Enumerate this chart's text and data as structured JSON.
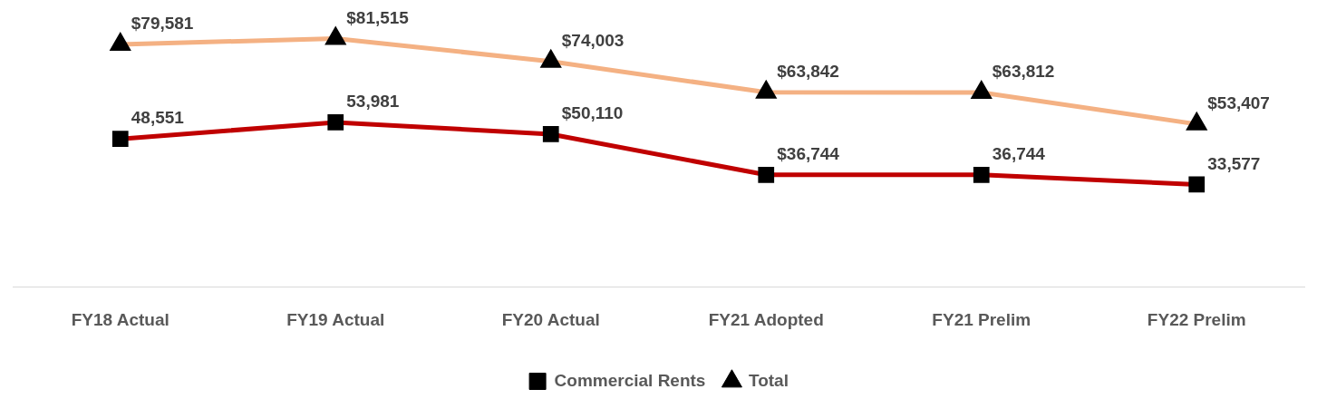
{
  "chart_data": {
    "type": "line",
    "categories": [
      "FY18 Actual",
      "FY19 Actual",
      "FY20 Actual",
      "FY21 Adopted",
      "FY21 Prelim",
      "FY22 Prelim"
    ],
    "tick_labels": "x",
    "legend": "bottom",
    "line_style": "solid",
    "series": [
      {
        "name": "Commercial Rents",
        "color": "#c00000",
        "marker": "square",
        "values": [
          48551,
          53981,
          50110,
          36744,
          36744,
          33577
        ],
        "value_labels": [
          "48,551",
          "53,981",
          "$50,110",
          "$36,744",
          "36,744",
          "33,577"
        ]
      },
      {
        "name": "Total",
        "color": "#f4b183",
        "marker": "triangle",
        "values": [
          79581,
          81515,
          74003,
          63842,
          63812,
          53407
        ],
        "value_labels": [
          "$79,581",
          "$81,515",
          "$74,003",
          "$63,842",
          "$63,812",
          "$53,407"
        ]
      }
    ]
  }
}
